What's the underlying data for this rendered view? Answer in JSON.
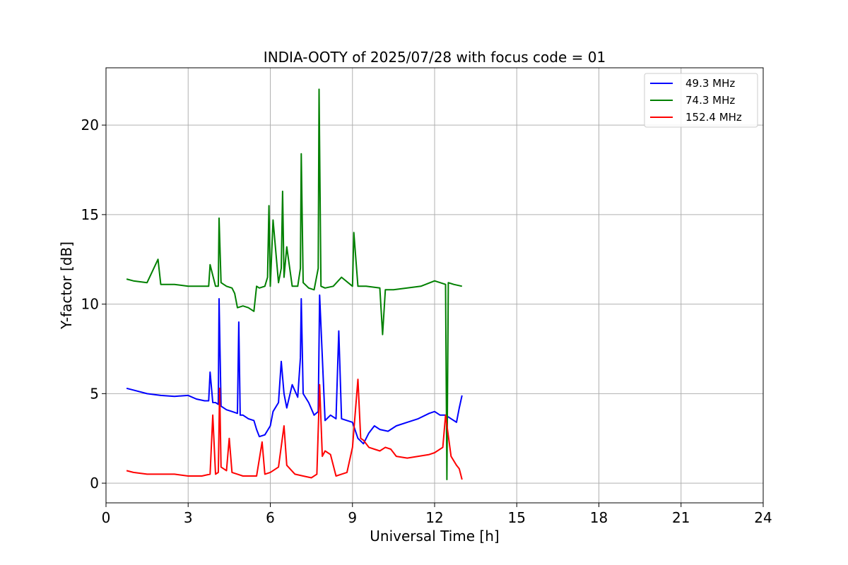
{
  "chart_data": {
    "type": "line",
    "title": "INDIA-OOTY of 2025/07/28 with focus code = 01",
    "xlabel": "Universal Time [h]",
    "ylabel": "Y-factor [dB]",
    "xlim": [
      0,
      24
    ],
    "ylim": [
      -1.1,
      23.2
    ],
    "xticks": [
      0,
      3,
      6,
      9,
      12,
      15,
      18,
      21,
      24
    ],
    "yticks": [
      0,
      5,
      10,
      15,
      20
    ],
    "grid": true,
    "legend_position": "top-right",
    "series": [
      {
        "name": "49.3 MHz",
        "color": "#0000ff",
        "x": [
          0.75,
          1.0,
          1.5,
          2.0,
          2.5,
          3.0,
          3.3,
          3.6,
          3.75,
          3.8,
          3.9,
          4.0,
          4.1,
          4.13,
          4.2,
          4.4,
          4.6,
          4.8,
          4.85,
          4.9,
          5.0,
          5.2,
          5.4,
          5.5,
          5.6,
          5.8,
          6.0,
          6.1,
          6.3,
          6.4,
          6.5,
          6.6,
          6.8,
          7.0,
          7.1,
          7.13,
          7.2,
          7.4,
          7.6,
          7.75,
          7.8,
          8.0,
          8.2,
          8.4,
          8.5,
          8.6,
          8.8,
          9.0,
          9.2,
          9.4,
          9.6,
          9.8,
          10.0,
          10.3,
          10.6,
          11.0,
          11.4,
          11.8,
          12.0,
          12.2,
          12.4,
          12.6,
          12.8,
          12.9,
          13.0
        ],
        "y": [
          5.3,
          5.2,
          5.0,
          4.9,
          4.85,
          4.9,
          4.7,
          4.6,
          4.6,
          6.2,
          4.5,
          4.5,
          4.4,
          10.3,
          4.3,
          4.1,
          4.0,
          3.9,
          9.0,
          3.8,
          3.8,
          3.6,
          3.5,
          3.0,
          2.6,
          2.7,
          3.2,
          4.0,
          4.5,
          6.8,
          5.0,
          4.2,
          5.5,
          4.8,
          7.0,
          10.3,
          5.0,
          4.5,
          3.8,
          4.0,
          10.5,
          3.5,
          3.8,
          3.6,
          8.5,
          3.6,
          3.5,
          3.4,
          2.5,
          2.2,
          2.8,
          3.2,
          3.0,
          2.9,
          3.2,
          3.4,
          3.6,
          3.9,
          4.0,
          3.8,
          3.8,
          3.6,
          3.4,
          4.2,
          4.9
        ]
      },
      {
        "name": "74.3 MHz",
        "color": "#008000",
        "x": [
          0.75,
          1.0,
          1.5,
          1.9,
          2.0,
          2.5,
          3.0,
          3.5,
          3.75,
          3.8,
          4.0,
          4.1,
          4.13,
          4.2,
          4.4,
          4.6,
          4.7,
          4.8,
          5.0,
          5.2,
          5.4,
          5.5,
          5.6,
          5.8,
          5.9,
          5.95,
          6.0,
          6.1,
          6.3,
          6.4,
          6.45,
          6.5,
          6.6,
          6.8,
          7.0,
          7.1,
          7.13,
          7.2,
          7.4,
          7.6,
          7.75,
          7.78,
          7.85,
          8.0,
          8.3,
          8.6,
          9.0,
          9.05,
          9.2,
          9.5,
          10.0,
          10.1,
          10.2,
          10.5,
          11.0,
          11.5,
          12.0,
          12.2,
          12.4,
          12.45,
          12.5,
          12.7,
          13.0
        ],
        "y": [
          11.4,
          11.3,
          11.2,
          12.5,
          11.1,
          11.1,
          11.0,
          11.0,
          11.0,
          12.2,
          11.0,
          11.0,
          14.8,
          11.2,
          11.0,
          10.9,
          10.6,
          9.8,
          9.9,
          9.8,
          9.6,
          11.0,
          10.9,
          11.0,
          11.5,
          15.5,
          11.0,
          14.7,
          11.2,
          12.0,
          16.3,
          11.5,
          13.2,
          11.0,
          11.0,
          12.0,
          18.4,
          11.2,
          10.9,
          10.8,
          12.0,
          22.0,
          11.0,
          10.9,
          11.0,
          11.5,
          11.0,
          14.0,
          11.0,
          11.0,
          10.9,
          8.3,
          10.8,
          10.8,
          10.9,
          11.0,
          11.3,
          11.2,
          11.1,
          0.2,
          11.2,
          11.1,
          11.0
        ]
      },
      {
        "name": "152.4 MHz",
        "color": "#ff0000",
        "x": [
          0.75,
          1.0,
          1.5,
          2.0,
          2.5,
          3.0,
          3.5,
          3.8,
          3.9,
          4.0,
          4.1,
          4.15,
          4.2,
          4.4,
          4.5,
          4.6,
          4.8,
          5.0,
          5.5,
          5.7,
          5.8,
          6.0,
          6.3,
          6.5,
          6.6,
          6.9,
          7.2,
          7.5,
          7.7,
          7.8,
          7.9,
          8.0,
          8.2,
          8.4,
          8.6,
          8.8,
          9.0,
          9.2,
          9.3,
          9.4,
          9.6,
          9.8,
          10.0,
          10.2,
          10.4,
          10.6,
          11.0,
          11.4,
          11.8,
          12.0,
          12.3,
          12.4,
          12.6,
          12.8,
          12.9,
          13.0
        ],
        "y": [
          0.7,
          0.6,
          0.5,
          0.5,
          0.5,
          0.4,
          0.4,
          0.5,
          3.8,
          0.5,
          0.6,
          5.3,
          0.9,
          0.7,
          2.5,
          0.6,
          0.5,
          0.4,
          0.4,
          2.3,
          0.5,
          0.6,
          0.9,
          3.2,
          1.0,
          0.5,
          0.4,
          0.3,
          0.5,
          5.5,
          1.5,
          1.8,
          1.6,
          0.4,
          0.5,
          0.6,
          2.0,
          5.8,
          2.5,
          2.4,
          2.0,
          1.9,
          1.8,
          2.0,
          1.9,
          1.5,
          1.4,
          1.5,
          1.6,
          1.7,
          2.0,
          3.8,
          1.5,
          1.0,
          0.8,
          0.2
        ]
      }
    ]
  }
}
